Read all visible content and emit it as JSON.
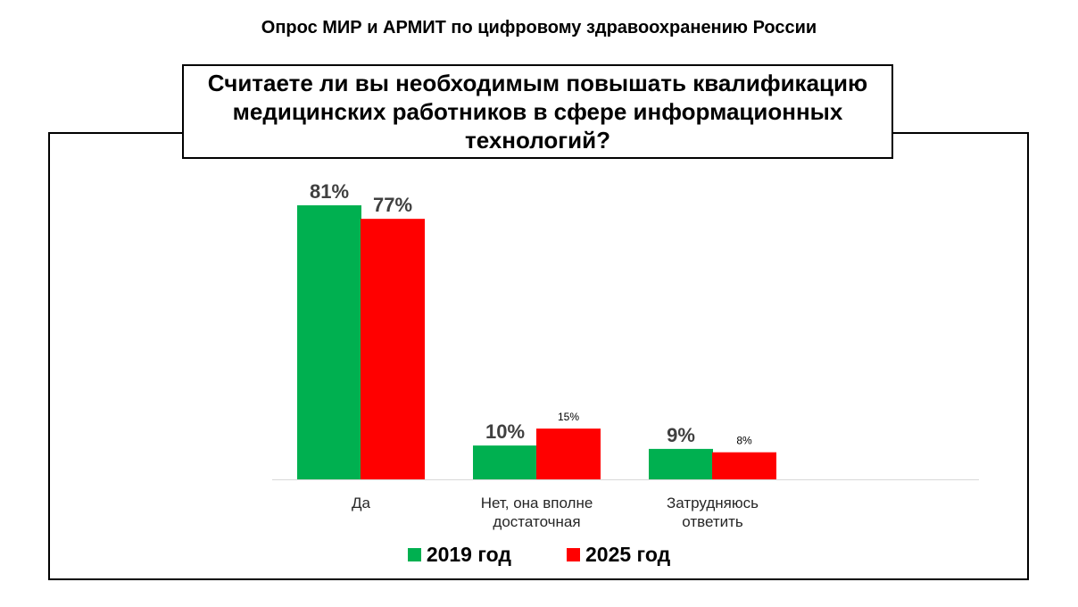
{
  "header": {
    "title": "Опрос МИР и АРМИТ по цифровому здравоохранению России"
  },
  "question": "Считаете ли вы необходимым повышать квалификацию медицинских работников в сфере информационных технологий?",
  "colors": {
    "series_2019": "#00b050",
    "series_2025": "#ff0000"
  },
  "chart_data": {
    "type": "bar",
    "title": "Считаете ли вы необходимым повышать квалификацию медицинских работников в сфере информационных технологий?",
    "categories": [
      [
        "Да"
      ],
      [
        "Нет, она вполне",
        "достаточная"
      ],
      [
        "Затрудняюсь",
        "ответить"
      ]
    ],
    "series": [
      {
        "name": "2019 год",
        "values": [
          81,
          10,
          9
        ],
        "labels": [
          "81%",
          "10%",
          "9%"
        ],
        "color": "#00b050"
      },
      {
        "name": "2025 год",
        "values": [
          77,
          15,
          8
        ],
        "labels": [
          "77%",
          "15%",
          "8%"
        ],
        "color": "#ff0000"
      }
    ],
    "ylim": [
      0,
      81
    ],
    "grid": false,
    "legend": "bottom"
  }
}
